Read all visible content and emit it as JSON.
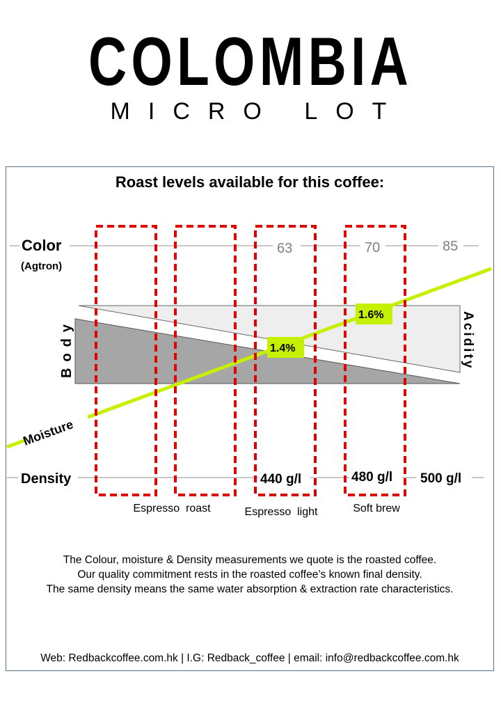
{
  "header": {
    "title": "COLOMBIA",
    "subtitle": "MICRO LOT"
  },
  "card": {
    "heading": "Roast levels available for this coffee:"
  },
  "diagram": {
    "color_label": "Color",
    "color_sublabel": "(Agtron)",
    "color_ticks": [
      "63",
      "70",
      "85"
    ],
    "body_label": "Body",
    "acidity_label": "Acidity",
    "moisture_label": "Moisture",
    "moisture_points": [
      "1.4%",
      "1.6%"
    ],
    "density_label": "Density",
    "density_ticks": [
      "440 g/l",
      "480 g/l",
      "500 g/l"
    ],
    "roast_levels": [
      "Espresso  roast",
      "Espresso  light",
      "Soft brew"
    ],
    "colors": {
      "moisture_line": "#c5f000",
      "roast_box": "#e00000",
      "body_fill": "#a6a6a6",
      "acidity_fill": "#eeeeee",
      "axis": "#c8c8c8"
    }
  },
  "notes": [
    "The Colour, moisture & Density measurements we quote is the roasted coffee.",
    "Our quality commitment  rests in the roasted coffee’s  known final density.",
    "The same density means the same water absorption & extraction rate characteristics."
  ],
  "footer": {
    "text": "Web: Redbackcoffee.com.hk  | I.G: Redback_coffee | email: info@redbackcoffee.com.hk"
  }
}
